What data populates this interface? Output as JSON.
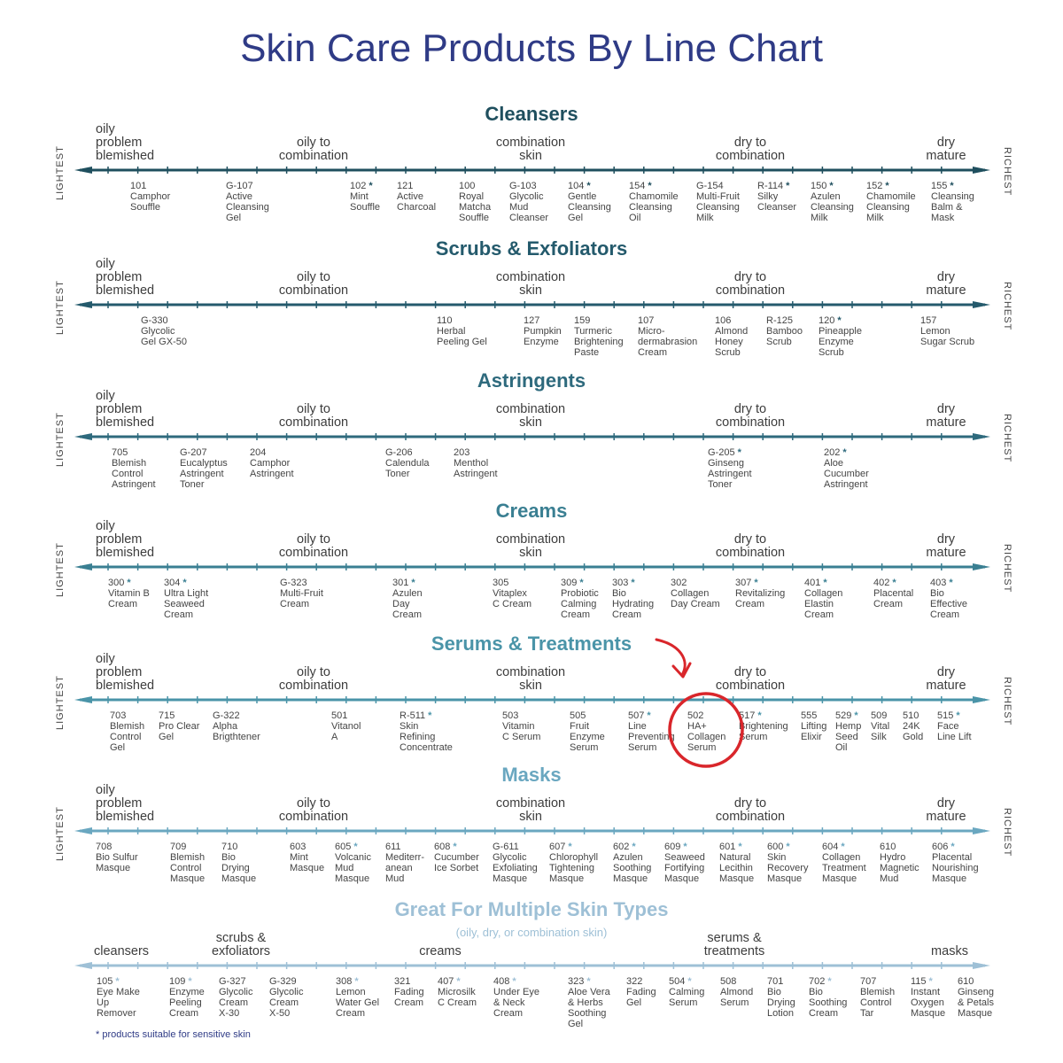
{
  "title": "Skin Care Products By Line Chart",
  "footnote": "* products suitable for sensitive skin",
  "side_left": "LIGHTEST",
  "side_right": "RICHEST",
  "categories": [
    {
      "lines": [
        "oily",
        "problem",
        "blemished"
      ]
    },
    {
      "lines": [
        "oily to",
        "combination"
      ]
    },
    {
      "lines": [
        "combination",
        "skin"
      ]
    },
    {
      "lines": [
        "dry to",
        "combination"
      ]
    },
    {
      "lines": [
        "dry",
        "mature"
      ]
    }
  ],
  "sections": [
    {
      "title": "Cleansers",
      "color": "#1f4f5e",
      "products": [
        {
          "code": "101",
          "name": [
            "Camphor",
            "Souffle"
          ],
          "star": false
        },
        {
          "code": "G-107",
          "name": [
            "Active",
            "Cleansing",
            "Gel"
          ],
          "star": false
        },
        {
          "code": "102",
          "name": [
            "Mint",
            "Souffle"
          ],
          "star": true
        },
        {
          "code": "121",
          "name": [
            "Active",
            "Charcoal"
          ],
          "star": false
        },
        {
          "code": "100",
          "name": [
            "Royal",
            "Matcha",
            "Souffle"
          ],
          "star": false
        },
        {
          "code": "G-103",
          "name": [
            "Glycolic",
            "Mud",
            "Cleanser"
          ],
          "star": false
        },
        {
          "code": "104",
          "name": [
            "Gentle",
            "Cleansing",
            "Gel"
          ],
          "star": true
        },
        {
          "code": "154",
          "name": [
            "Chamomile",
            "Cleansing",
            "Oil"
          ],
          "star": true
        },
        {
          "code": "G-154",
          "name": [
            "Multi-Fruit",
            "Cleansing",
            "Milk"
          ],
          "star": false
        },
        {
          "code": "R-114",
          "name": [
            "Silky",
            "Cleanser"
          ],
          "star": true
        },
        {
          "code": "150",
          "name": [
            "Azulen",
            "Cleansing",
            "Milk"
          ],
          "star": true
        },
        {
          "code": "152",
          "name": [
            "Chamomile",
            "Cleansing",
            "Milk"
          ],
          "star": true
        },
        {
          "code": "155",
          "name": [
            "Cleansing",
            "Balm &",
            "Mask"
          ],
          "star": true
        }
      ]
    },
    {
      "title": "Scrubs & Exfoliators",
      "color": "#245a6c",
      "products": [
        {
          "code": "G-330",
          "name": [
            "Glycolic",
            "Gel GX-50"
          ],
          "star": false
        },
        {
          "code": "110",
          "name": [
            "Herbal",
            "Peeling Gel"
          ],
          "star": false
        },
        {
          "code": "127",
          "name": [
            "Pumpkin",
            "Enzyme"
          ],
          "star": false
        },
        {
          "code": "159",
          "name": [
            "Turmeric",
            "Brightening",
            "Paste"
          ],
          "star": false
        },
        {
          "code": "107",
          "name": [
            "Micro-",
            "dermabrasion",
            "Cream"
          ],
          "star": false
        },
        {
          "code": "106",
          "name": [
            "Almond",
            "Honey",
            "Scrub"
          ],
          "star": false
        },
        {
          "code": "R-125",
          "name": [
            "Bamboo",
            "Scrub"
          ],
          "star": false
        },
        {
          "code": "120",
          "name": [
            "Pineapple",
            "Enzyme",
            "Scrub"
          ],
          "star": true
        },
        {
          "code": "157",
          "name": [
            "Lemon",
            "Sugar Scrub"
          ],
          "star": false
        }
      ]
    },
    {
      "title": "Astringents",
      "color": "#2e6a7d",
      "products": [
        {
          "code": "705",
          "name": [
            "Blemish",
            "Control",
            "Astringent"
          ],
          "star": false
        },
        {
          "code": "G-207",
          "name": [
            "Eucalyptus",
            "Astringent",
            "Toner"
          ],
          "star": false
        },
        {
          "code": "204",
          "name": [
            "Camphor",
            "Astringent"
          ],
          "star": false
        },
        {
          "code": "G-206",
          "name": [
            "Calendula",
            "Toner"
          ],
          "star": false
        },
        {
          "code": "203",
          "name": [
            "Menthol",
            "Astringent"
          ],
          "star": false
        },
        {
          "code": "G-205",
          "name": [
            "Ginseng",
            "Astringent",
            "Toner"
          ],
          "star": true
        },
        {
          "code": "202",
          "name": [
            "Aloe",
            "Cucumber",
            "Astringent"
          ],
          "star": true
        }
      ]
    },
    {
      "title": "Creams",
      "color": "#3a7f92",
      "products": [
        {
          "code": "300",
          "name": [
            "Vitamin B",
            "Cream"
          ],
          "star": true
        },
        {
          "code": "304",
          "name": [
            "Ultra Light",
            "Seaweed",
            "Cream"
          ],
          "star": true
        },
        {
          "code": "G-323",
          "name": [
            "Multi-Fruit",
            "Cream"
          ],
          "star": false
        },
        {
          "code": "301",
          "name": [
            "Azulen",
            "Day",
            "Cream"
          ],
          "star": true
        },
        {
          "code": "305",
          "name": [
            "Vitaplex",
            "C Cream"
          ],
          "star": false
        },
        {
          "code": "309",
          "name": [
            "Probiotic",
            "Calming",
            "Cream"
          ],
          "star": true
        },
        {
          "code": "303",
          "name": [
            "Bio",
            "Hydrating",
            "Cream"
          ],
          "star": true
        },
        {
          "code": "302",
          "name": [
            "Collagen",
            "Day Cream"
          ],
          "star": false
        },
        {
          "code": "307",
          "name": [
            "Revitalizing",
            "Cream"
          ],
          "star": true
        },
        {
          "code": "401",
          "name": [
            "Collagen",
            "Elastin",
            "Cream"
          ],
          "star": true
        },
        {
          "code": "402",
          "name": [
            "Placental",
            "Cream"
          ],
          "star": true
        },
        {
          "code": "403",
          "name": [
            "Bio",
            "Effective",
            "Cream"
          ],
          "star": true
        }
      ]
    },
    {
      "title": "Serums & Treatments",
      "color": "#4a94a8",
      "products": [
        {
          "code": "703",
          "name": [
            "Blemish",
            "Control",
            "Gel"
          ],
          "star": false
        },
        {
          "code": "715",
          "name": [
            "Pro Clear",
            "Gel"
          ],
          "star": false
        },
        {
          "code": "G-322",
          "name": [
            "Alpha",
            "Brigthtener"
          ],
          "star": false
        },
        {
          "code": "501",
          "name": [
            "Vitanol",
            "A"
          ],
          "star": false
        },
        {
          "code": "R-511",
          "name": [
            "Skin",
            "Refining",
            "Concentrate"
          ],
          "star": true
        },
        {
          "code": "503",
          "name": [
            "Vitamin",
            "C Serum"
          ],
          "star": false
        },
        {
          "code": "505",
          "name": [
            "Fruit",
            "Enzyme",
            "Serum"
          ],
          "star": false
        },
        {
          "code": "507",
          "name": [
            "Line",
            "Preventing",
            "Serum"
          ],
          "star": true
        },
        {
          "code": "502",
          "name": [
            "HA+",
            "Collagen",
            "Serum"
          ],
          "star": false
        },
        {
          "code": "517",
          "name": [
            "Brightening",
            "Serum"
          ],
          "star": true
        },
        {
          "code": "555",
          "name": [
            "Lifting",
            "Elixir"
          ],
          "star": false
        },
        {
          "code": "529",
          "name": [
            "Hemp",
            "Seed",
            "Oil"
          ],
          "star": true
        },
        {
          "code": "509",
          "name": [
            "Vital",
            "Silk"
          ],
          "star": false
        },
        {
          "code": "510",
          "name": [
            "24K",
            "Gold"
          ],
          "star": false
        },
        {
          "code": "515",
          "name": [
            "Face",
            "Line Lift"
          ],
          "star": true
        }
      ]
    },
    {
      "title": "Masks",
      "color": "#6aa7c0",
      "products": [
        {
          "code": "708",
          "name": [
            "Bio Sulfur",
            "Masque"
          ],
          "star": false
        },
        {
          "code": "709",
          "name": [
            "Blemish",
            "Control",
            "Masque"
          ],
          "star": false
        },
        {
          "code": "710",
          "name": [
            "Bio",
            "Drying",
            "Masque"
          ],
          "star": false
        },
        {
          "code": "603",
          "name": [
            "Mint",
            "Masque"
          ],
          "star": false
        },
        {
          "code": "605",
          "name": [
            "Volcanic",
            "Mud",
            "Masque"
          ],
          "star": true
        },
        {
          "code": "611",
          "name": [
            "Mediterr-",
            "anean",
            "Mud"
          ],
          "star": false
        },
        {
          "code": "608",
          "name": [
            "Cucumber",
            "Ice Sorbet"
          ],
          "star": true
        },
        {
          "code": "G-611",
          "name": [
            "Glycolic",
            "Exfoliating",
            "Masque"
          ],
          "star": false
        },
        {
          "code": "607",
          "name": [
            "Chlorophyll",
            "Tightening",
            "Masque"
          ],
          "star": true
        },
        {
          "code": "602",
          "name": [
            "Azulen",
            "Soothing",
            "Masque"
          ],
          "star": true
        },
        {
          "code": "609",
          "name": [
            "Seaweed",
            "Fortifying",
            "Masque"
          ],
          "star": true
        },
        {
          "code": "601",
          "name": [
            "Natural",
            "Lecithin",
            "Masque"
          ],
          "star": true
        },
        {
          "code": "600",
          "name": [
            "Skin",
            "Recovery",
            "Masque"
          ],
          "star": true
        },
        {
          "code": "604",
          "name": [
            "Collagen",
            "Treatment",
            "Masque"
          ],
          "star": true
        },
        {
          "code": "610",
          "name": [
            "Hydro",
            "Magnetic",
            "Mud"
          ],
          "star": false
        },
        {
          "code": "606",
          "name": [
            "Placental",
            "Nourishing",
            "Masque"
          ],
          "star": true
        }
      ]
    }
  ],
  "multi": {
    "title": "Great For Multiple Skin Types",
    "subtitle": "(oily, dry, or combination skin)",
    "color": "#9ec0d6",
    "categories": [
      {
        "lines": [
          "cleansers"
        ]
      },
      {
        "lines": [
          "scrubs &",
          "exfoliators"
        ]
      },
      {
        "lines": [
          "creams"
        ]
      },
      {
        "lines": [
          "serums &",
          "treatments"
        ]
      },
      {
        "lines": [
          "masks"
        ]
      }
    ],
    "products": [
      {
        "code": "105",
        "name": [
          "Eye Make",
          "Up",
          "Remover"
        ],
        "star": true
      },
      {
        "code": "109",
        "name": [
          "Enzyme",
          "Peeling",
          "Cream"
        ],
        "star": true
      },
      {
        "code": "G-327",
        "name": [
          "Glycolic",
          "Cream",
          "X-30"
        ],
        "star": false
      },
      {
        "code": "G-329",
        "name": [
          "Glycolic",
          "Cream",
          "X-50"
        ],
        "star": false
      },
      {
        "code": "308",
        "name": [
          "Lemon",
          "Water Gel",
          "Cream"
        ],
        "star": true
      },
      {
        "code": "321",
        "name": [
          "Fading",
          "Cream"
        ],
        "star": false
      },
      {
        "code": "407",
        "name": [
          "Microsilk",
          "C Cream"
        ],
        "star": true
      },
      {
        "code": "408",
        "name": [
          "Under Eye",
          "& Neck",
          "Cream"
        ],
        "star": true
      },
      {
        "code": "323",
        "name": [
          "Aloe Vera",
          "& Herbs",
          "Soothing",
          "Gel"
        ],
        "star": true
      },
      {
        "code": "322",
        "name": [
          "Fading",
          "Gel"
        ],
        "star": false
      },
      {
        "code": "504",
        "name": [
          "Calming",
          "Serum"
        ],
        "star": true
      },
      {
        "code": "508",
        "name": [
          "Almond",
          "Serum"
        ],
        "star": false
      },
      {
        "code": "701",
        "name": [
          "Bio",
          "Drying",
          "Lotion"
        ],
        "star": false
      },
      {
        "code": "702",
        "name": [
          "Bio",
          "Soothing",
          "Cream"
        ],
        "star": true
      },
      {
        "code": "707",
        "name": [
          "Blemish",
          "Control",
          "Tar"
        ],
        "star": false
      },
      {
        "code": "115",
        "name": [
          "Instant",
          "Oxygen",
          "Masque"
        ],
        "star": true
      },
      {
        "code": "610",
        "name": [
          "Ginseng",
          "& Petals",
          "Masque"
        ],
        "star": false
      }
    ]
  },
  "highlight": {
    "section": "Serums & Treatments",
    "code": "502",
    "color": "#d9262b"
  }
}
